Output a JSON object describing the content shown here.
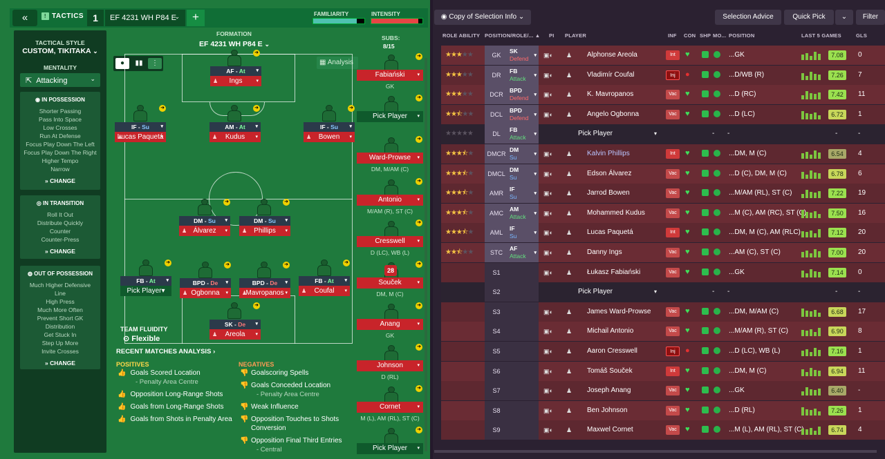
{
  "header": {
    "back_icon": "double-chevron-left-icon",
    "tactics_label": "TACTICS",
    "tactic_number": "1",
    "formation_select": "EF 4231  WH P84 E",
    "add_label": "+",
    "familiarity_label": "FAMILIARITY",
    "intensity_label": "INTENSITY",
    "familiarity_level": 0.85,
    "intensity_level": 0.92
  },
  "sidebar": {
    "tactical_style_label": "TACTICAL STYLE",
    "tactical_style_value": "CUSTOM, TIKITAKA",
    "mentality_label": "MENTALITY",
    "mentality_value": "Attacking",
    "sections": [
      {
        "title": "IN POSSESSION",
        "items": [
          "Shorter Passing",
          "Pass Into Space",
          "Low Crosses",
          "Run At Defense",
          "Focus Play Down The Left",
          "Focus Play Down The Right",
          "Higher Tempo",
          "Narrow"
        ],
        "change": "CHANGE"
      },
      {
        "title": "IN TRANSITION",
        "items": [
          "Roll It Out",
          "Distribute Quickly",
          "Counter",
          "Counter-Press"
        ],
        "change": "CHANGE"
      },
      {
        "title": "OUT OF POSSESSION",
        "items": [
          "Much Higher Defensive Line",
          "High Press",
          "Much More Often",
          "Prevent Short GK Distribution",
          "Get Stuck In",
          "Step Up More",
          "Invite Crosses"
        ],
        "change": "CHANGE"
      }
    ]
  },
  "pitch": {
    "formation_label": "FORMATION",
    "formation_value": "EF 4231  WH P84 E",
    "analysis_label": "Analysis",
    "team_fluidity_label": "TEAM FLUIDITY",
    "team_fluidity_value": "Flexible",
    "players": [
      {
        "role": "AF",
        "duty": "At",
        "name": "Ings"
      },
      {
        "role": "IF",
        "duty": "Su",
        "name": "Lucas Paquetá"
      },
      {
        "role": "AM",
        "duty": "At",
        "name": "Kudus"
      },
      {
        "role": "IF",
        "duty": "Su",
        "name": "Bowen"
      },
      {
        "role": "DM",
        "duty": "Su",
        "name": "Álvarez"
      },
      {
        "role": "DM",
        "duty": "Su",
        "name": "Phillips"
      },
      {
        "role": "FB",
        "duty": "At",
        "name": "Pick Player"
      },
      {
        "role": "BPD",
        "duty": "De",
        "name": "Ogbonna"
      },
      {
        "role": "BPD",
        "duty": "De",
        "name": "Mavropanos"
      },
      {
        "role": "FB",
        "duty": "At",
        "name": "Coufal"
      },
      {
        "role": "SK",
        "duty": "De",
        "name": "Areola"
      }
    ]
  },
  "subs": {
    "label": "SUBS:",
    "count": "8/15",
    "items": [
      {
        "name": "Fabiański",
        "pos": "GK"
      },
      {
        "name": "Pick Player",
        "pos": ""
      },
      {
        "name": "Ward-Prowse",
        "pos": "DM, M/AM (C)"
      },
      {
        "name": "Antonio",
        "pos": "M/AM (R), ST (C)"
      },
      {
        "name": "Cresswell",
        "pos": "D (LC), WB (L)"
      },
      {
        "name": "Souček",
        "pos": "DM, M (C)"
      },
      {
        "name": "Anang",
        "pos": "GK"
      },
      {
        "name": "Johnson",
        "pos": "D (RL)"
      },
      {
        "name": "Cornet",
        "pos": "M (L), AM (RL), ST (C)"
      },
      {
        "name": "Pick Player",
        "pos": ""
      }
    ],
    "soucek_number": "28"
  },
  "analysis": {
    "recent_label": "RECENT MATCHES ANALYSIS",
    "positives_label": "POSITIVES",
    "negatives_label": "NEGATIVES",
    "positives": [
      {
        "text": "Goals Scored Location",
        "sub": "- Penalty Area Centre"
      },
      {
        "text": "Opposition Long-Range Shots",
        "sub": ""
      },
      {
        "text": "Goals from Long-Range Shots",
        "sub": ""
      },
      {
        "text": "Goals from Shots in Penalty Area",
        "sub": ""
      }
    ],
    "negatives": [
      {
        "text": "Goalscoring Spells",
        "sub": ""
      },
      {
        "text": "Goals Conceded Location",
        "sub": "- Penalty Area Centre"
      },
      {
        "text": "Weak Influence",
        "sub": ""
      },
      {
        "text": "Opposition Touches to Shots Conversion",
        "sub": ""
      },
      {
        "text": "Opposition Final Third Entries",
        "sub": "- Central"
      }
    ]
  },
  "right": {
    "copy_button": "Copy of Selection Info",
    "selection_advice": "Selection Advice",
    "quick_pick": "Quick Pick",
    "filter": "Filter",
    "columns": {
      "role_ability": "ROLE ABILITY",
      "position_role": "POSITION/ROLE/...",
      "pi": "PI",
      "player": "PLAYER",
      "inf": "INF",
      "con": "CON",
      "shp": "SHP",
      "mo": "MO...",
      "position": "POSITION",
      "last5": "LAST 5 GAMES",
      "gls": "GLS"
    },
    "rows": [
      {
        "stars": 3,
        "half": false,
        "pos": "GK",
        "role": "SK",
        "duty": "Defend",
        "player": "Alphonse Areola",
        "inf": "Int",
        "position": "GK",
        "rating": "7.08",
        "gls": "0"
      },
      {
        "stars": 3,
        "half": false,
        "pos": "DR",
        "role": "FB",
        "duty": "Attack",
        "player": "Vladimír Coufal",
        "inf": "Inj",
        "position": "D/WB (R)",
        "rating": "7.26",
        "gls": "7"
      },
      {
        "stars": 3,
        "half": false,
        "pos": "DCR",
        "role": "BPD",
        "duty": "Defend",
        "player": "K. Mavropanos",
        "inf": "Vac",
        "position": "D (RC)",
        "rating": "7.42",
        "gls": "11"
      },
      {
        "stars": 2,
        "half": true,
        "pos": "DCL",
        "role": "BPD",
        "duty": "Defend",
        "player": "Angelo Ogbonna",
        "inf": "Vac",
        "position": "D (LC)",
        "rating": "6.72",
        "gls": "1"
      },
      {
        "stars": 0,
        "half": false,
        "pos": "DL",
        "role": "FB",
        "duty": "Attack",
        "player": "Pick Player",
        "inf": "",
        "position": "-",
        "rating": "-",
        "gls": "-"
      },
      {
        "stars": 3,
        "half": true,
        "pos": "DMCR",
        "role": "DM",
        "duty": "Su",
        "player": "Kalvin Phillips",
        "inf": "Int",
        "position": "DM, M (C)",
        "rating": "6.54",
        "gls": "4"
      },
      {
        "stars": 3,
        "half": true,
        "pos": "DMCL",
        "role": "DM",
        "duty": "Su",
        "player": "Edson Álvarez",
        "inf": "Vac",
        "position": "D (C), DM, M (C)",
        "rating": "6.78",
        "gls": "6"
      },
      {
        "stars": 3,
        "half": true,
        "pos": "AMR",
        "role": "IF",
        "duty": "Su",
        "player": "Jarrod Bowen",
        "inf": "Vac",
        "position": "M/AM (RL), ST (C)",
        "rating": "7.22",
        "gls": "19"
      },
      {
        "stars": 3,
        "half": true,
        "pos": "AMC",
        "role": "AM",
        "duty": "Attack",
        "player": "Mohammed Kudus",
        "inf": "Vac",
        "position": "M (C), AM (RC), ST (C)",
        "rating": "7.50",
        "gls": "16"
      },
      {
        "stars": 3,
        "half": true,
        "pos": "AML",
        "role": "IF",
        "duty": "Su",
        "player": "Lucas Paquetá",
        "inf": "Int",
        "position": "DM, M (C), AM (RLC)",
        "rating": "7.12",
        "gls": "20"
      },
      {
        "stars": 2,
        "half": true,
        "pos": "STC",
        "role": "AF",
        "duty": "Attack",
        "player": "Danny Ings",
        "inf": "Vac",
        "position": "AM (C), ST (C)",
        "rating": "7.00",
        "gls": "20"
      },
      {
        "stars": -1,
        "half": false,
        "pos": "S1",
        "role": "",
        "duty": "",
        "player": "Łukasz Fabiański",
        "inf": "Vac",
        "position": "GK",
        "rating": "7.14",
        "gls": "0"
      },
      {
        "stars": -1,
        "half": false,
        "pos": "S2",
        "role": "",
        "duty": "",
        "player": "Pick Player",
        "inf": "",
        "position": "-",
        "rating": "-",
        "gls": "-"
      },
      {
        "stars": -1,
        "half": false,
        "pos": "S3",
        "role": "",
        "duty": "",
        "player": "James Ward-Prowse",
        "inf": "Vac",
        "position": "DM, M/AM (C)",
        "rating": "6.68",
        "gls": "17"
      },
      {
        "stars": -1,
        "half": false,
        "pos": "S4",
        "role": "",
        "duty": "",
        "player": "Michail Antonio",
        "inf": "Vac",
        "position": "M/AM (R), ST (C)",
        "rating": "6.90",
        "gls": "8"
      },
      {
        "stars": -1,
        "half": false,
        "pos": "S5",
        "role": "",
        "duty": "",
        "player": "Aaron Cresswell",
        "inf": "Inj",
        "position": "D (LC), WB (L)",
        "rating": "7.16",
        "gls": "1"
      },
      {
        "stars": -1,
        "half": false,
        "pos": "S6",
        "role": "",
        "duty": "",
        "player": "Tomáš Souček",
        "inf": "Int",
        "position": "DM, M (C)",
        "rating": "6.94",
        "gls": "11"
      },
      {
        "stars": -1,
        "half": false,
        "pos": "S7",
        "role": "",
        "duty": "",
        "player": "Joseph Anang",
        "inf": "Vac",
        "position": "GK",
        "rating": "6.40",
        "gls": "-"
      },
      {
        "stars": -1,
        "half": false,
        "pos": "S8",
        "role": "",
        "duty": "",
        "player": "Ben Johnson",
        "inf": "Vac",
        "position": "D (RL)",
        "rating": "7.26",
        "gls": "1"
      },
      {
        "stars": -1,
        "half": false,
        "pos": "S9",
        "role": "",
        "duty": "",
        "player": "Maxwel Cornet",
        "inf": "Vac",
        "position": "M (L), AM (RL), ST (C)",
        "rating": "6.74",
        "gls": "4"
      }
    ]
  },
  "colors": {
    "pitch_green": "#1f7a3d",
    "panel_dark": "#2b2131",
    "red_name": "#c8242a",
    "accent_yellow": "#f0d000"
  }
}
